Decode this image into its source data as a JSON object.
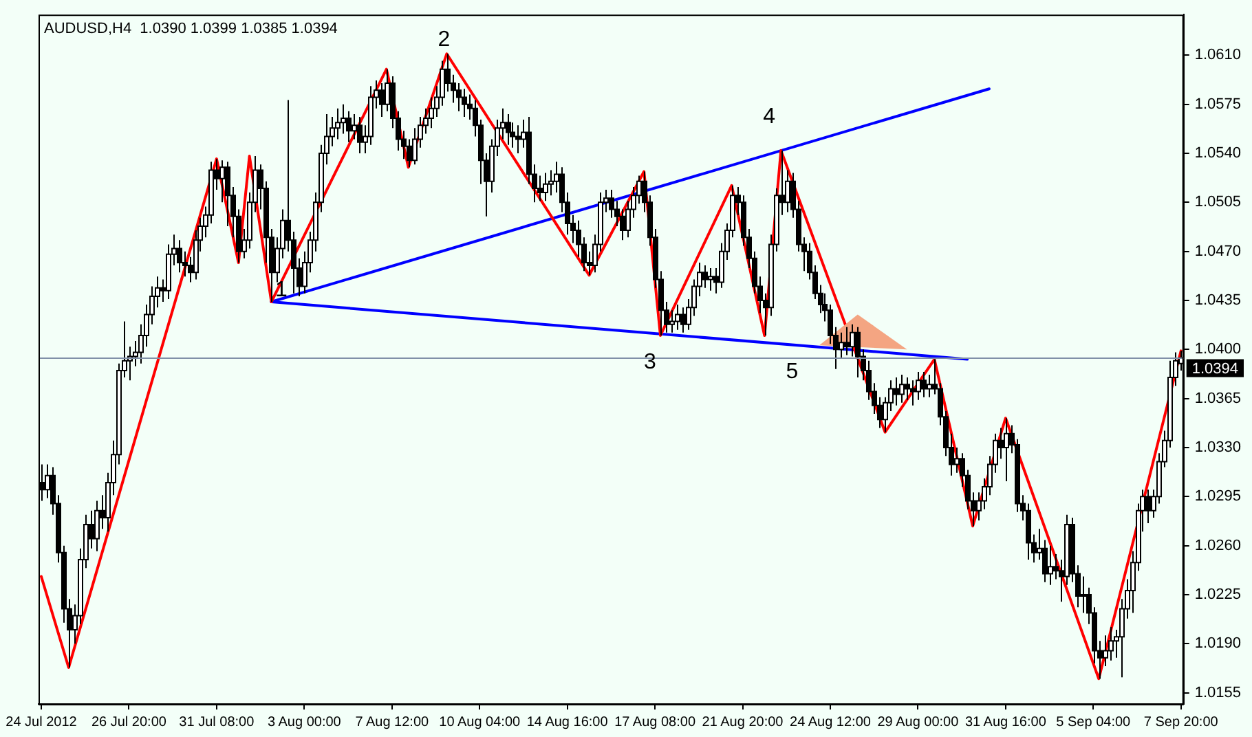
{
  "chart_data": {
    "type": "candlestick",
    "title": "AUDUSD,H4  1.0390 1.0399 1.0385 1.0394",
    "categories": [
      "24 Jul 2012",
      null,
      null,
      null,
      null,
      null,
      null,
      null,
      null,
      null,
      null,
      null,
      null,
      null,
      null,
      null,
      "26 Jul 20:00",
      null,
      null,
      null,
      null,
      null,
      null,
      null,
      null,
      null,
      null,
      null,
      null,
      null,
      null,
      null,
      "31 Jul 08:00",
      null,
      null,
      null,
      null,
      null,
      null,
      null,
      null,
      null,
      null,
      null,
      null,
      null,
      null,
      null,
      "3 Aug 00:00",
      null,
      null,
      null,
      null,
      null,
      null,
      null,
      null,
      null,
      null,
      null,
      null,
      null,
      null,
      null,
      "7 Aug 12:00",
      null,
      null,
      null,
      null,
      null,
      null,
      null,
      null,
      null,
      null,
      null,
      null,
      null,
      null,
      null,
      "10 Aug 04:00",
      null,
      null,
      null,
      null,
      null,
      null,
      null,
      null,
      null,
      null,
      null,
      null,
      null,
      null,
      null,
      "14 Aug 16:00",
      null,
      null,
      null,
      null,
      null,
      null,
      null,
      null,
      null,
      null,
      null,
      null,
      null,
      null,
      null,
      "17 Aug 08:00",
      null,
      null,
      null,
      null,
      null,
      null,
      null,
      null,
      null,
      null,
      null,
      null,
      null,
      null,
      null,
      "21 Aug 20:00",
      null,
      null,
      null,
      null,
      null,
      null,
      null,
      null,
      null,
      null,
      null,
      null,
      null,
      null,
      null,
      "24 Aug 12:00",
      null,
      null,
      null,
      null,
      null,
      null,
      null,
      null,
      null,
      null,
      null,
      null,
      null,
      null,
      null,
      "29 Aug 00:00",
      null,
      null,
      null,
      null,
      null,
      null,
      null,
      null,
      null,
      null,
      null,
      null,
      null,
      null,
      null,
      "31 Aug 16:00",
      null,
      null,
      null,
      null,
      null,
      null,
      null,
      null,
      null,
      null,
      null,
      null,
      null,
      null,
      null,
      "5 Sep 04:00",
      null,
      null,
      null,
      null,
      null,
      null,
      null,
      null,
      null,
      null,
      null,
      null,
      null,
      null,
      null,
      "7 Sep 20:00"
    ],
    "ohlc": [
      [
        1.0305,
        1.0318,
        1.0292,
        1.03
      ],
      [
        1.03,
        1.0318,
        1.0294,
        1.031
      ],
      [
        1.031,
        1.0316,
        1.0282,
        1.029
      ],
      [
        1.029,
        1.0296,
        1.0248,
        1.0255
      ],
      [
        1.0255,
        1.026,
        1.0205,
        1.0215
      ],
      [
        1.0215,
        1.0222,
        1.0173,
        1.02
      ],
      [
        1.02,
        1.0218,
        1.019,
        1.021
      ],
      [
        1.021,
        1.0258,
        1.0204,
        1.025
      ],
      [
        1.025,
        1.0282,
        1.0244,
        1.0275
      ],
      [
        1.0275,
        1.0285,
        1.0258,
        1.0265
      ],
      [
        1.0265,
        1.0292,
        1.0256,
        1.0285
      ],
      [
        1.0285,
        1.0296,
        1.0272,
        1.028
      ],
      [
        1.028,
        1.0312,
        1.027,
        1.0305
      ],
      [
        1.0305,
        1.0335,
        1.0296,
        1.0325
      ],
      [
        1.0325,
        1.039,
        1.0318,
        1.0385
      ],
      [
        1.0385,
        1.042,
        1.038,
        1.0392
      ],
      [
        1.0392,
        1.0402,
        1.0378,
        1.0395
      ],
      [
        1.0395,
        1.0406,
        1.0388,
        1.0398
      ],
      [
        1.0398,
        1.0418,
        1.039,
        1.041
      ],
      [
        1.041,
        1.0432,
        1.0402,
        1.0425
      ],
      [
        1.0425,
        1.0445,
        1.0418,
        1.0438
      ],
      [
        1.0438,
        1.0452,
        1.043,
        1.0444
      ],
      [
        1.0444,
        1.045,
        1.0434,
        1.0442
      ],
      [
        1.0442,
        1.0475,
        1.0436,
        1.0468
      ],
      [
        1.0468,
        1.0482,
        1.046,
        1.0472
      ],
      [
        1.0472,
        1.0478,
        1.0455,
        1.0462
      ],
      [
        1.0462,
        1.047,
        1.0452,
        1.046
      ],
      [
        1.046,
        1.0466,
        1.0448,
        1.0455
      ],
      [
        1.0455,
        1.0485,
        1.045,
        1.0478
      ],
      [
        1.0478,
        1.0494,
        1.047,
        1.0488
      ],
      [
        1.0488,
        1.0502,
        1.048,
        1.0496
      ],
      [
        1.0496,
        1.0534,
        1.049,
        1.0528
      ],
      [
        1.0528,
        1.0536,
        1.0514,
        1.0522
      ],
      [
        1.0522,
        1.0535,
        1.0505,
        1.053
      ],
      [
        1.053,
        1.0534,
        1.0488,
        1.051
      ],
      [
        1.051,
        1.0516,
        1.048,
        1.0495
      ],
      [
        1.0495,
        1.05,
        1.0462,
        1.047
      ],
      [
        1.047,
        1.0486,
        1.0465,
        1.0478
      ],
      [
        1.0478,
        1.0512,
        1.0472,
        1.0505
      ],
      [
        1.0505,
        1.0538,
        1.0498,
        1.0528
      ],
      [
        1.0528,
        1.0532,
        1.05,
        1.0515
      ],
      [
        1.0515,
        1.052,
        1.0462,
        1.048
      ],
      [
        1.048,
        1.0486,
        1.0434,
        1.0455
      ],
      [
        1.0455,
        1.048,
        1.0448,
        1.0472
      ],
      [
        1.0472,
        1.05,
        1.0465,
        1.0492
      ],
      [
        1.0492,
        1.0578,
        1.047,
        1.0478
      ],
      [
        1.0478,
        1.0484,
        1.044,
        1.0458
      ],
      [
        1.0458,
        1.0465,
        1.0438,
        1.0445
      ],
      [
        1.0445,
        1.047,
        1.044,
        1.0462
      ],
      [
        1.0462,
        1.0484,
        1.0455,
        1.0478
      ],
      [
        1.0478,
        1.0512,
        1.047,
        1.0505
      ],
      [
        1.0505,
        1.0546,
        1.0498,
        1.054
      ],
      [
        1.054,
        1.0568,
        1.0532,
        1.0552
      ],
      [
        1.0552,
        1.0566,
        1.0545,
        1.0558
      ],
      [
        1.0558,
        1.0572,
        1.055,
        1.0562
      ],
      [
        1.0562,
        1.0575,
        1.0554,
        1.0565
      ],
      [
        1.0565,
        1.057,
        1.0548,
        1.0556
      ],
      [
        1.0556,
        1.0568,
        1.055,
        1.056
      ],
      [
        1.056,
        1.0566,
        1.054,
        1.0548
      ],
      [
        1.0548,
        1.056,
        1.054,
        1.0552
      ],
      [
        1.0552,
        1.0588,
        1.0546,
        1.058
      ],
      [
        1.058,
        1.0592,
        1.0572,
        1.0585
      ],
      [
        1.0585,
        1.059,
        1.0566,
        1.0575
      ],
      [
        1.0575,
        1.06,
        1.057,
        1.059
      ],
      [
        1.059,
        1.0595,
        1.0558,
        1.0565
      ],
      [
        1.0565,
        1.057,
        1.0542,
        1.055
      ],
      [
        1.055,
        1.0556,
        1.0536,
        1.0545
      ],
      [
        1.0545,
        1.055,
        1.053,
        1.0535
      ],
      [
        1.0535,
        1.0558,
        1.0532,
        1.055
      ],
      [
        1.055,
        1.0566,
        1.0544,
        1.056
      ],
      [
        1.056,
        1.0572,
        1.0554,
        1.0565
      ],
      [
        1.0565,
        1.058,
        1.0558,
        1.0572
      ],
      [
        1.0572,
        1.0588,
        1.0566,
        1.058
      ],
      [
        1.058,
        1.0606,
        1.0574,
        1.06
      ],
      [
        1.06,
        1.0611,
        1.0584,
        1.059
      ],
      [
        1.059,
        1.0596,
        1.0576,
        1.0585
      ],
      [
        1.0585,
        1.059,
        1.057,
        1.058
      ],
      [
        1.058,
        1.0586,
        1.0566,
        1.0575
      ],
      [
        1.0575,
        1.0582,
        1.0564,
        1.0572
      ],
      [
        1.0572,
        1.0578,
        1.0552,
        1.056
      ],
      [
        1.056,
        1.0564,
        1.0518,
        1.0535
      ],
      [
        1.0535,
        1.054,
        1.0495,
        1.052
      ],
      [
        1.052,
        1.055,
        1.0512,
        1.0545
      ],
      [
        1.0545,
        1.0564,
        1.0538,
        1.0558
      ],
      [
        1.0558,
        1.0572,
        1.055,
        1.0562
      ],
      [
        1.0562,
        1.0568,
        1.0546,
        1.0555
      ],
      [
        1.0555,
        1.0562,
        1.0544,
        1.0552
      ],
      [
        1.0552,
        1.056,
        1.054,
        1.055
      ],
      [
        1.055,
        1.0564,
        1.0544,
        1.0555
      ],
      [
        1.0555,
        1.0566,
        1.0518,
        1.0525
      ],
      [
        1.0525,
        1.0532,
        1.0505,
        1.0515
      ],
      [
        1.0515,
        1.0524,
        1.0506,
        1.0512
      ],
      [
        1.0512,
        1.0526,
        1.0506,
        1.0518
      ],
      [
        1.0518,
        1.0528,
        1.051,
        1.052
      ],
      [
        1.052,
        1.0534,
        1.0512,
        1.0525
      ],
      [
        1.0525,
        1.053,
        1.0498,
        1.0505
      ],
      [
        1.0505,
        1.0512,
        1.0482,
        1.049
      ],
      [
        1.049,
        1.0496,
        1.0476,
        1.0485
      ],
      [
        1.0485,
        1.0492,
        1.0466,
        1.0475
      ],
      [
        1.0475,
        1.048,
        1.0456,
        1.0462
      ],
      [
        1.0462,
        1.047,
        1.0453,
        1.046
      ],
      [
        1.046,
        1.0482,
        1.0455,
        1.0475
      ],
      [
        1.0475,
        1.0512,
        1.047,
        1.0505
      ],
      [
        1.0505,
        1.0514,
        1.0498,
        1.0508
      ],
      [
        1.0508,
        1.0514,
        1.0494,
        1.05
      ],
      [
        1.05,
        1.0506,
        1.0488,
        1.0495
      ],
      [
        1.0495,
        1.05,
        1.0478,
        1.0485
      ],
      [
        1.0485,
        1.0506,
        1.048,
        1.05
      ],
      [
        1.05,
        1.0516,
        1.0494,
        1.051
      ],
      [
        1.051,
        1.0524,
        1.0504,
        1.052
      ],
      [
        1.052,
        1.0527,
        1.0498,
        1.0505
      ],
      [
        1.0505,
        1.051,
        1.0474,
        1.048
      ],
      [
        1.048,
        1.0486,
        1.0444,
        1.045
      ],
      [
        1.045,
        1.0456,
        1.041,
        1.0428
      ],
      [
        1.0428,
        1.0434,
        1.0412,
        1.0418
      ],
      [
        1.0418,
        1.0428,
        1.0412,
        1.042
      ],
      [
        1.042,
        1.0432,
        1.0414,
        1.0425
      ],
      [
        1.0425,
        1.043,
        1.0412,
        1.0418
      ],
      [
        1.0418,
        1.0436,
        1.0414,
        1.043
      ],
      [
        1.043,
        1.045,
        1.0424,
        1.0445
      ],
      [
        1.0445,
        1.0462,
        1.0438,
        1.0455
      ],
      [
        1.0455,
        1.046,
        1.0444,
        1.045
      ],
      [
        1.045,
        1.0458,
        1.0442,
        1.0452
      ],
      [
        1.0452,
        1.0458,
        1.044,
        1.0448
      ],
      [
        1.0448,
        1.0476,
        1.0444,
        1.047
      ],
      [
        1.047,
        1.049,
        1.0464,
        1.0485
      ],
      [
        1.0485,
        1.0517,
        1.048,
        1.051
      ],
      [
        1.051,
        1.0516,
        1.0496,
        1.0505
      ],
      [
        1.0505,
        1.051,
        1.0474,
        1.048
      ],
      [
        1.048,
        1.0486,
        1.0458,
        1.0465
      ],
      [
        1.0465,
        1.047,
        1.044,
        1.0445
      ],
      [
        1.0445,
        1.0452,
        1.0426,
        1.0435
      ],
      [
        1.0435,
        1.044,
        1.041,
        1.043
      ],
      [
        1.043,
        1.0482,
        1.0424,
        1.0475
      ],
      [
        1.0475,
        1.0515,
        1.047,
        1.051
      ],
      [
        1.051,
        1.0542,
        1.0496,
        1.0505
      ],
      [
        1.0505,
        1.0528,
        1.0498,
        1.052
      ],
      [
        1.052,
        1.0526,
        1.0494,
        1.05
      ],
      [
        1.05,
        1.0506,
        1.047,
        1.0475
      ],
      [
        1.0475,
        1.048,
        1.0456,
        1.047
      ],
      [
        1.047,
        1.0476,
        1.045,
        1.0455
      ],
      [
        1.0455,
        1.046,
        1.0436,
        1.044
      ],
      [
        1.044,
        1.0446,
        1.0426,
        1.0432
      ],
      [
        1.0432,
        1.044,
        1.042,
        1.0428
      ],
      [
        1.0428,
        1.0432,
        1.0404,
        1.041
      ],
      [
        1.041,
        1.0416,
        1.0386,
        1.04
      ],
      [
        1.04,
        1.0412,
        1.0394,
        1.0405
      ],
      [
        1.0405,
        1.0416,
        1.0396,
        1.0402
      ],
      [
        1.0402,
        1.0418,
        1.0395,
        1.0412
      ],
      [
        1.0412,
        1.0416,
        1.038,
        1.0395
      ],
      [
        1.0395,
        1.04,
        1.0378,
        1.0385
      ],
      [
        1.0385,
        1.0392,
        1.0364,
        1.037
      ],
      [
        1.037,
        1.0376,
        1.0354,
        1.036
      ],
      [
        1.036,
        1.0366,
        1.0344,
        1.035
      ],
      [
        1.035,
        1.0366,
        1.0341,
        1.0362
      ],
      [
        1.0362,
        1.0378,
        1.0356,
        1.0372
      ],
      [
        1.0372,
        1.038,
        1.036,
        1.0368
      ],
      [
        1.0368,
        1.0382,
        1.0362,
        1.0375
      ],
      [
        1.0375,
        1.038,
        1.0364,
        1.0372
      ],
      [
        1.0372,
        1.0378,
        1.036,
        1.037
      ],
      [
        1.037,
        1.0384,
        1.0364,
        1.0378
      ],
      [
        1.0378,
        1.0384,
        1.0366,
        1.0372
      ],
      [
        1.0372,
        1.0382,
        1.0366,
        1.0375
      ],
      [
        1.0375,
        1.0393,
        1.0368,
        1.0372
      ],
      [
        1.0372,
        1.0376,
        1.0346,
        1.0352
      ],
      [
        1.0352,
        1.0356,
        1.0324,
        1.033
      ],
      [
        1.033,
        1.034,
        1.031,
        1.0318
      ],
      [
        1.0318,
        1.033,
        1.0312,
        1.0322
      ],
      [
        1.0322,
        1.0326,
        1.0302,
        1.031
      ],
      [
        1.031,
        1.0314,
        1.0286,
        1.0292
      ],
      [
        1.0292,
        1.0298,
        1.0274,
        1.0285
      ],
      [
        1.0285,
        1.0298,
        1.0278,
        1.0292
      ],
      [
        1.0292,
        1.0308,
        1.0286,
        1.0302
      ],
      [
        1.0302,
        1.0324,
        1.0296,
        1.0318
      ],
      [
        1.0318,
        1.034,
        1.0312,
        1.0335
      ],
      [
        1.0335,
        1.0344,
        1.0322,
        1.033
      ],
      [
        1.033,
        1.0351,
        1.0306,
        1.034
      ],
      [
        1.034,
        1.0346,
        1.0326,
        1.0332
      ],
      [
        1.0332,
        1.0336,
        1.0284,
        1.029
      ],
      [
        1.029,
        1.0296,
        1.0278,
        1.0285
      ],
      [
        1.0285,
        1.029,
        1.025,
        1.0262
      ],
      [
        1.0262,
        1.0268,
        1.0248,
        1.0255
      ],
      [
        1.0255,
        1.0272,
        1.025,
        1.0258
      ],
      [
        1.0258,
        1.0264,
        1.0234,
        1.024
      ],
      [
        1.024,
        1.026,
        1.0232,
        1.0245
      ],
      [
        1.0245,
        1.0254,
        1.0236,
        1.0242
      ],
      [
        1.0242,
        1.025,
        1.022,
        1.0238
      ],
      [
        1.0238,
        1.0282,
        1.0232,
        1.0275
      ],
      [
        1.0275,
        1.028,
        1.0234,
        1.024
      ],
      [
        1.024,
        1.0246,
        1.0216,
        1.0224
      ],
      [
        1.0224,
        1.0238,
        1.0212,
        1.0225
      ],
      [
        1.0225,
        1.023,
        1.0204,
        1.0212
      ],
      [
        1.0212,
        1.0216,
        1.0176,
        1.0185
      ],
      [
        1.0185,
        1.0192,
        1.0165,
        1.018
      ],
      [
        1.018,
        1.0196,
        1.0174,
        1.0185
      ],
      [
        1.0185,
        1.0202,
        1.0178,
        1.0192
      ],
      [
        1.0192,
        1.02,
        1.018,
        1.0195
      ],
      [
        1.0195,
        1.0222,
        1.0166,
        1.0215
      ],
      [
        1.0215,
        1.0236,
        1.0208,
        1.0228
      ],
      [
        1.0228,
        1.0256,
        1.0212,
        1.0248
      ],
      [
        1.0248,
        1.029,
        1.0242,
        1.0285
      ],
      [
        1.0285,
        1.03,
        1.027,
        1.0295
      ],
      [
        1.0295,
        1.03,
        1.0276,
        1.0285
      ],
      [
        1.0285,
        1.03,
        1.028,
        1.0295
      ],
      [
        1.0295,
        1.0326,
        1.029,
        1.032
      ],
      [
        1.032,
        1.0342,
        1.0316,
        1.0335
      ],
      [
        1.0335,
        1.0392,
        1.033,
        1.038
      ],
      [
        1.038,
        1.0398,
        1.0374,
        1.0392
      ],
      [
        1.039,
        1.0399,
        1.0385,
        1.0394
      ]
    ],
    "ylim": [
      1.0147,
      1.0639
    ],
    "yticks": [
      1.0155,
      {
        "value": 1.019,
        "label": "1.0190"
      },
      1.0225,
      {
        "value": 1.026,
        "label": "1.0260"
      },
      1.0295,
      {
        "value": 1.033,
        "label": "1.0330"
      },
      1.0365,
      {
        "value": 1.04,
        "label": "1.0400"
      },
      1.0435,
      {
        "value": 1.047,
        "label": "1.0470"
      },
      1.0505,
      {
        "value": 1.054,
        "label": "1.0540"
      },
      1.0575,
      {
        "value": 1.061,
        "label": "1.0610"
      }
    ],
    "series": [
      {
        "type": "area",
        "color": "#f4a582",
        "values": [
          null,
          null,
          null,
          null,
          null,
          null,
          null,
          null,
          null,
          null,
          null,
          null,
          null,
          null,
          null,
          null,
          null,
          null,
          null,
          null,
          null,
          null,
          null,
          null,
          null,
          null,
          null,
          null,
          null,
          null,
          null,
          null,
          null,
          null,
          null,
          null,
          null,
          null,
          null,
          null,
          null,
          null,
          null,
          null,
          null,
          null,
          null,
          null,
          null,
          null,
          null,
          null,
          null,
          null,
          null,
          null,
          null,
          null,
          null,
          null,
          null,
          null,
          null,
          null,
          null,
          null,
          null,
          null,
          null,
          null,
          null,
          null,
          null,
          null,
          null,
          null,
          null,
          null,
          null,
          null,
          null,
          null,
          null,
          null,
          null,
          null,
          null,
          null,
          null,
          null,
          null,
          null,
          null,
          null,
          null,
          null,
          null,
          null,
          null,
          null,
          null,
          null,
          null,
          null,
          null,
          null,
          null,
          null,
          null,
          null,
          null,
          null,
          null,
          null,
          null,
          null,
          null,
          null,
          null,
          null,
          null,
          null,
          null,
          null,
          null,
          null,
          null,
          null,
          null,
          null,
          null,
          null,
          null,
          null,
          null,
          null,
          null,
          null,
          null,
          null,
          null,
          null,
          1.0403,
          null,
          null,
          null,
          null,
          null,
          null,
          1.0425,
          null,
          null,
          null,
          null,
          null,
          null,
          null,
          null,
          1.04,
          null,
          null,
          null,
          null,
          null,
          null,
          null,
          null,
          null,
          null,
          null,
          null,
          null,
          null,
          null,
          null,
          null,
          null,
          null,
          null,
          null,
          null,
          null,
          null,
          null,
          null,
          null,
          null,
          null,
          null,
          null,
          null,
          null,
          null,
          null,
          null,
          null,
          null,
          null,
          null,
          null,
          null,
          null,
          null,
          null,
          null,
          null,
          null,
          null,
          null
        ]
      },
      {
        "type": "line",
        "color": "#ff0000",
        "values": [
          1.0238,
          null,
          null,
          null,
          null,
          1.0173,
          null,
          null,
          null,
          null,
          null,
          null,
          null,
          null,
          null,
          null,
          null,
          null,
          null,
          null,
          null,
          null,
          null,
          null,
          null,
          null,
          null,
          null,
          null,
          null,
          null,
          null,
          1.0536,
          null,
          null,
          null,
          1.0462,
          null,
          1.0538,
          null,
          null,
          null,
          1.0434,
          null,
          null,
          null,
          null,
          null,
          null,
          null,
          null,
          null,
          null,
          null,
          null,
          null,
          null,
          null,
          null,
          null,
          null,
          null,
          null,
          1.06,
          null,
          null,
          null,
          1.053,
          null,
          null,
          null,
          null,
          null,
          null,
          1.0611,
          null,
          null,
          null,
          null,
          null,
          null,
          null,
          null,
          null,
          null,
          null,
          null,
          null,
          null,
          null,
          null,
          null,
          null,
          null,
          null,
          null,
          null,
          null,
          null,
          null,
          1.0453,
          null,
          null,
          null,
          null,
          null,
          null,
          null,
          null,
          null,
          1.0527,
          null,
          null,
          1.041,
          null,
          null,
          null,
          null,
          null,
          null,
          null,
          null,
          null,
          null,
          null,
          null,
          1.0517,
          null,
          null,
          null,
          null,
          null,
          1.041,
          null,
          null,
          1.0542,
          null,
          null,
          null,
          null,
          null,
          null,
          null,
          null,
          null,
          null,
          null,
          null,
          null,
          null,
          null,
          null,
          null,
          null,
          1.0341,
          null,
          null,
          null,
          null,
          null,
          null,
          null,
          null,
          1.0393,
          null,
          null,
          null,
          null,
          null,
          null,
          1.0274,
          null,
          null,
          null,
          null,
          null,
          1.0351,
          null,
          null,
          null,
          null,
          null,
          null,
          null,
          null,
          null,
          null,
          null,
          null,
          null,
          null,
          null,
          null,
          1.0165,
          null,
          null,
          null,
          null,
          null,
          null,
          null,
          null,
          null,
          null,
          null,
          null,
          null,
          null,
          1.0399
        ]
      },
      {
        "type": "line",
        "color": "#0000ff",
        "values": [
          null,
          null,
          null,
          null,
          null,
          null,
          null,
          null,
          null,
          null,
          null,
          null,
          null,
          null,
          null,
          null,
          null,
          null,
          null,
          null,
          null,
          null,
          null,
          null,
          null,
          null,
          null,
          null,
          null,
          null,
          null,
          null,
          null,
          null,
          null,
          null,
          null,
          null,
          null,
          null,
          null,
          null,
          1.0434,
          null,
          null,
          null,
          null,
          null,
          null,
          null,
          null,
          null,
          null,
          null,
          null,
          null,
          null,
          null,
          null,
          null,
          null,
          null,
          null,
          null,
          null,
          null,
          null,
          null,
          null,
          null,
          null,
          null,
          null,
          null,
          null,
          null,
          null,
          null,
          null,
          null,
          null,
          null,
          null,
          null,
          null,
          null,
          null,
          null,
          null,
          null,
          null,
          null,
          null,
          null,
          null,
          null,
          null,
          null,
          null,
          null,
          null,
          null,
          null,
          null,
          null,
          null,
          null,
          null,
          null,
          null,
          null,
          null,
          null,
          null,
          null,
          null,
          null,
          null,
          null,
          null,
          null,
          null,
          null,
          null,
          null,
          null,
          null,
          null,
          null,
          null,
          null,
          null,
          null,
          null,
          null,
          null,
          null,
          null,
          null,
          null,
          null,
          null,
          null,
          null,
          null,
          null,
          null,
          null,
          null,
          null,
          null,
          null,
          null,
          null,
          null,
          null,
          null,
          null,
          null,
          null,
          null,
          null,
          null,
          null,
          null,
          null,
          null,
          null,
          null,
          null,
          null,
          null,
          null,
          1.0586,
          null,
          null,
          null,
          null,
          null,
          null,
          null,
          null,
          null,
          null,
          null,
          null,
          null,
          null,
          null,
          null,
          null,
          null,
          null,
          null,
          null,
          null,
          null,
          null,
          null,
          null,
          null,
          null,
          null,
          null,
          null,
          null,
          null,
          null,
          null
        ]
      },
      {
        "type": "line",
        "color": "#0000ff",
        "values": [
          null,
          null,
          null,
          null,
          null,
          null,
          null,
          null,
          null,
          null,
          null,
          null,
          null,
          null,
          null,
          null,
          null,
          null,
          null,
          null,
          null,
          null,
          null,
          null,
          null,
          null,
          null,
          null,
          null,
          null,
          null,
          null,
          null,
          null,
          null,
          null,
          null,
          null,
          null,
          null,
          null,
          null,
          1.0434,
          null,
          null,
          null,
          null,
          null,
          null,
          null,
          null,
          null,
          null,
          null,
          null,
          null,
          null,
          null,
          null,
          null,
          null,
          null,
          null,
          null,
          null,
          null,
          null,
          null,
          null,
          null,
          null,
          null,
          null,
          null,
          null,
          null,
          null,
          null,
          null,
          null,
          null,
          null,
          null,
          null,
          null,
          null,
          null,
          null,
          null,
          null,
          null,
          null,
          null,
          null,
          null,
          null,
          null,
          null,
          null,
          null,
          null,
          null,
          null,
          null,
          null,
          null,
          null,
          null,
          null,
          null,
          null,
          null,
          null,
          null,
          null,
          null,
          null,
          null,
          null,
          null,
          null,
          null,
          null,
          null,
          null,
          null,
          null,
          null,
          null,
          null,
          null,
          null,
          null,
          null,
          null,
          null,
          null,
          null,
          null,
          null,
          null,
          null,
          null,
          null,
          null,
          null,
          null,
          null,
          null,
          null,
          null,
          null,
          null,
          null,
          null,
          null,
          null,
          null,
          null,
          null,
          null,
          null,
          null,
          null,
          null,
          null,
          null,
          null,
          null,
          1.0393,
          null,
          null,
          null,
          null,
          null,
          null,
          null,
          null,
          null,
          null,
          null,
          null,
          null,
          null,
          null,
          null,
          null,
          null,
          null,
          null,
          null,
          null,
          null,
          null,
          null,
          null,
          null,
          null,
          null,
          null,
          null,
          null,
          null,
          null,
          null,
          null,
          null,
          null,
          null
        ]
      }
    ],
    "ref_lines": [
      {
        "axis": "y",
        "value": 1.0394,
        "label": "1.0394",
        "color": "#8090a8"
      }
    ],
    "annotations": [
      "1",
      "2",
      "3",
      "4",
      "5"
    ]
  }
}
